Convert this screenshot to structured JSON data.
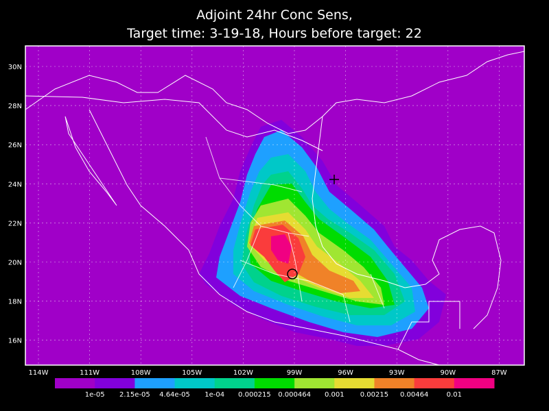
{
  "header": {
    "title_lines": [
      "Adjoint 24hr Conc Sens,",
      "Target time: 3-19-18, Hours before target: 22"
    ]
  },
  "map": {
    "lat_labels": [
      "30N",
      "28N",
      "26N",
      "24N",
      "22N",
      "20N",
      "18N",
      "16N"
    ],
    "lon_labels": [
      "114W",
      "111W",
      "108W",
      "105W",
      "102W",
      "99W",
      "96W",
      "93W",
      "90W",
      "87W"
    ]
  },
  "legend": {
    "colors": [
      "#a000c8",
      "#8200dc",
      "#1ea0ff",
      "#00c8c8",
      "#00d28c",
      "#00dc00",
      "#a0e632",
      "#e6dc32",
      "#f08228",
      "#fa3c3c",
      "#f00082"
    ],
    "labels": [
      "1e-05",
      "2.15e-05",
      "4.64e-05",
      "1e-04",
      "0.000215",
      "0.000464",
      "0.001",
      "0.00215",
      "0.00464",
      "0.01"
    ]
  }
}
